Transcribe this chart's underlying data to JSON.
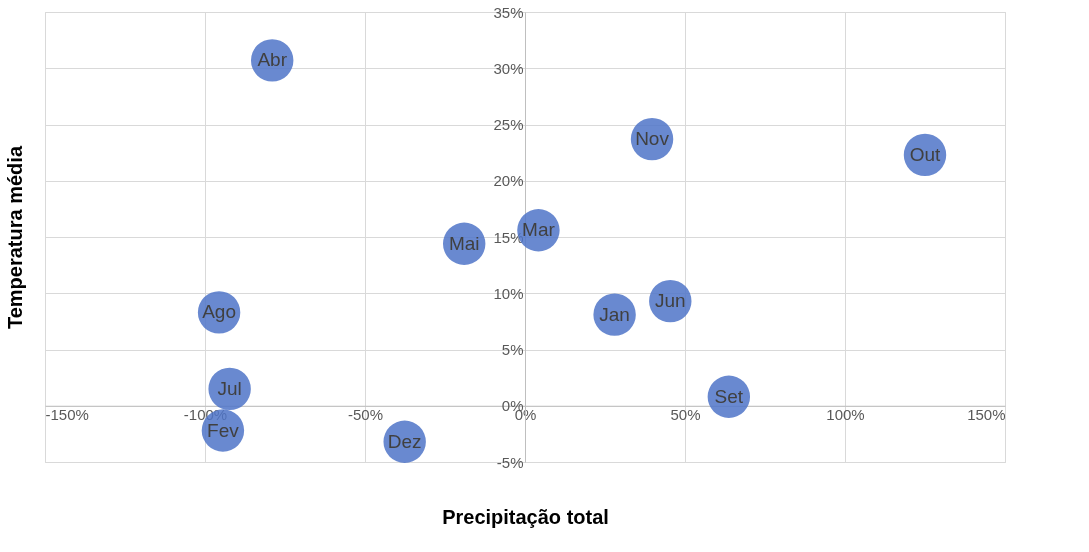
{
  "chart_data": {
    "type": "scatter",
    "xlabel": "Precipitação total",
    "ylabel": "Temperatura média",
    "x": [
      28,
      -94.4,
      4.2,
      -79,
      -19,
      45.4,
      -92.3,
      -95.6,
      63.7,
      125,
      39.7,
      -37.6
    ],
    "values": [
      8.1,
      -2.2,
      15.6,
      30.7,
      14.4,
      9.3,
      1.5,
      8.3,
      0.8,
      22.3,
      23.7,
      -3.2
    ],
    "value_labels": [
      "Jan",
      "Fev",
      "Mar",
      "Abr",
      "Mai",
      "Jun",
      "Jul",
      "Ago",
      "Set",
      "Out",
      "Nov",
      "Dez"
    ],
    "color": "#4f74c8",
    "marker": "circle",
    "grid": true,
    "xlim": [
      -150,
      150
    ],
    "xticks": [
      {
        "value": -150,
        "label": "-150%"
      },
      {
        "value": -100,
        "label": "-100%"
      },
      {
        "value": -50,
        "label": "-50%"
      },
      {
        "value": 0,
        "label": "0%"
      },
      {
        "value": 50,
        "label": "50%"
      },
      {
        "value": 100,
        "label": "100%"
      },
      {
        "value": 150,
        "label": "150%"
      }
    ],
    "ylim": [
      -5,
      35
    ],
    "yticks": [
      {
        "value": -5,
        "label": "-5%"
      },
      {
        "value": 0,
        "label": "0%"
      },
      {
        "value": 5,
        "label": "5%"
      },
      {
        "value": 10,
        "label": "10%"
      },
      {
        "value": 15,
        "label": "15%"
      },
      {
        "value": 20,
        "label": "20%"
      },
      {
        "value": 25,
        "label": "25%"
      },
      {
        "value": 30,
        "label": "30%"
      },
      {
        "value": 35,
        "label": "35%"
      }
    ]
  }
}
